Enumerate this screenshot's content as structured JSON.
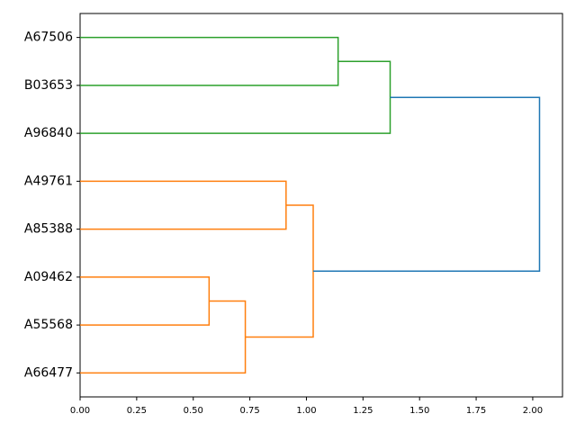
{
  "chart_data": {
    "type": "dendrogram",
    "orientation": "left",
    "xlim": [
      0,
      2.1315
    ],
    "xticks": [
      {
        "value": 0,
        "label": "0.00"
      },
      {
        "value": 0.25,
        "label": "0.25"
      },
      {
        "value": 0.5,
        "label": "0.50"
      },
      {
        "value": 0.75,
        "label": "0.75"
      },
      {
        "value": 1,
        "label": "1.00"
      },
      {
        "value": 1.25,
        "label": "1.25"
      },
      {
        "value": 1.5,
        "label": "1.50"
      },
      {
        "value": 1.75,
        "label": "1.75"
      },
      {
        "value": 2,
        "label": "2.00"
      }
    ],
    "tree": {
      "height": 2.03,
      "color": "#1f77b4",
      "children": [
        {
          "height": 1.37,
          "color": "#2ca02c",
          "children": [
            {
              "height": 1.14,
              "color": "#2ca02c",
              "children": [
                "A67506",
                "B03653"
              ]
            },
            "A96840"
          ]
        },
        {
          "height": 1.03,
          "color": "#ff7f0e",
          "children": [
            {
              "height": 0.91,
              "color": "#ff7f0e",
              "children": [
                "A49761",
                "A85388"
              ]
            },
            {
              "height": 0.73,
              "color": "#ff7f0e",
              "children": [
                {
                  "height": 0.57,
                  "color": "#ff7f0e",
                  "children": [
                    "A09462",
                    "A55568"
                  ]
                },
                "A66477"
              ]
            }
          ]
        }
      ]
    }
  }
}
